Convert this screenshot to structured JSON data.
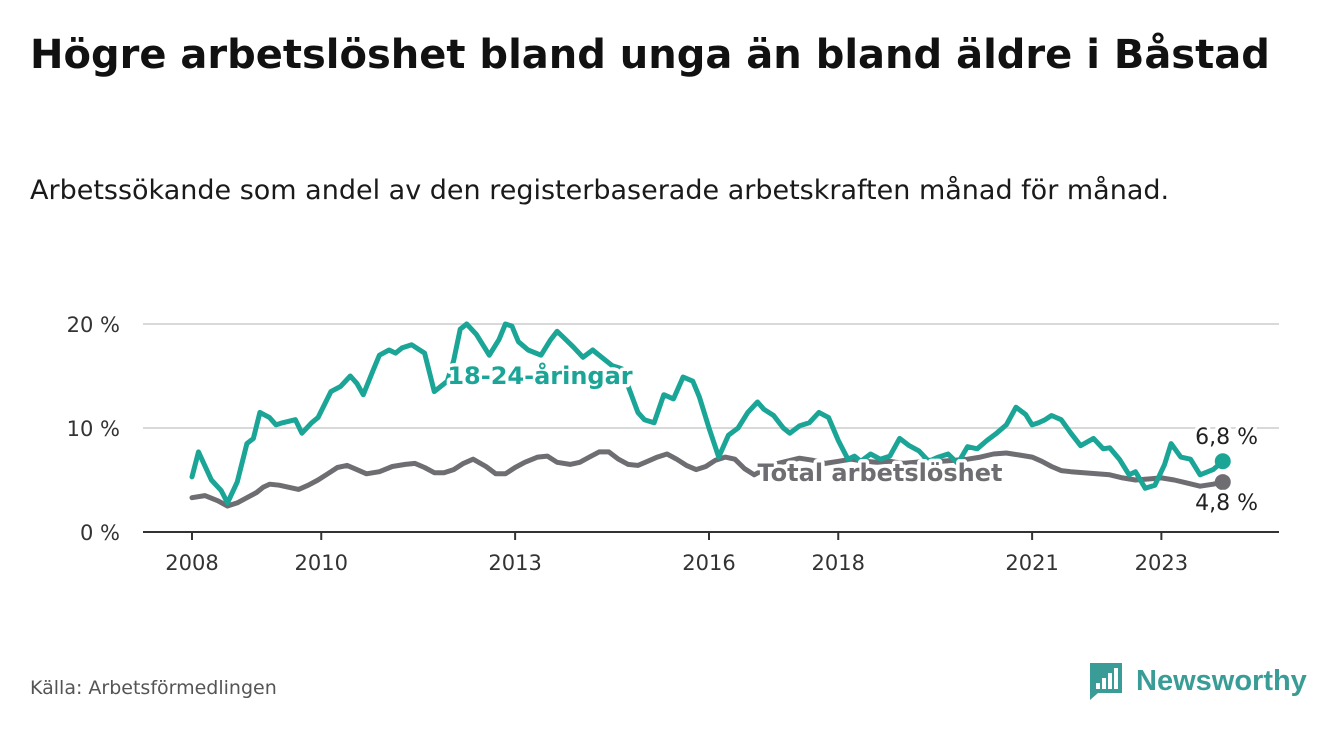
{
  "title": "Högre arbetslöshet bland unga än bland äldre i Båstad",
  "subtitle": "Arbetssökande som andel av den registerbaserade arbetskraften månad för månad.",
  "source": "Källa: Arbetsförmedlingen",
  "brand": "Newsworthy",
  "colors": {
    "youth": "#1aa597",
    "total": "#6e6e72",
    "brand": "#3a9c96",
    "grid": "#d9d9d9",
    "axis": "#333333"
  },
  "chart_data": {
    "type": "line",
    "xlim": [
      2008.0,
      2024.0
    ],
    "ylim": [
      0,
      20
    ],
    "y_ticks": [
      {
        "value": 0,
        "label": "0 %"
      },
      {
        "value": 10,
        "label": "10 %"
      },
      {
        "value": 20,
        "label": "20 %"
      }
    ],
    "x_ticks": [
      {
        "value": 2008,
        "label": "2008"
      },
      {
        "value": 2010,
        "label": "2010"
      },
      {
        "value": 2013,
        "label": "2013"
      },
      {
        "value": 2016,
        "label": "2016"
      },
      {
        "value": 2018,
        "label": "2018"
      },
      {
        "value": 2021,
        "label": "2021"
      },
      {
        "value": 2023,
        "label": "2023"
      }
    ],
    "series": [
      {
        "name": "18-24-åringar",
        "label": "18-24-åringar",
        "end_label": "6,8 %",
        "x": [
          2008.0,
          2008.1,
          2008.3,
          2008.45,
          2008.55,
          2008.7,
          2008.85,
          2008.95,
          2009.05,
          2009.2,
          2009.3,
          2009.4,
          2009.6,
          2009.7,
          2009.85,
          2009.95,
          2010.15,
          2010.3,
          2010.45,
          2010.55,
          2010.65,
          2010.8,
          2010.9,
          2011.05,
          2011.15,
          2011.25,
          2011.4,
          2011.6,
          2011.75,
          2011.95,
          2012.05,
          2012.15,
          2012.25,
          2012.4,
          2012.6,
          2012.75,
          2012.85,
          2012.95,
          2013.05,
          2013.2,
          2013.4,
          2013.55,
          2013.65,
          2013.75,
          2013.9,
          2014.05,
          2014.2,
          2014.3,
          2014.5,
          2014.65,
          2014.75,
          2014.9,
          2015.0,
          2015.15,
          2015.3,
          2015.45,
          2015.6,
          2015.75,
          2015.85,
          2016.0,
          2016.15,
          2016.3,
          2016.45,
          2016.6,
          2016.75,
          2016.85,
          2017.0,
          2017.15,
          2017.25,
          2017.4,
          2017.55,
          2017.7,
          2017.85,
          2018.0,
          2018.15,
          2018.25,
          2018.35,
          2018.5,
          2018.65,
          2018.8,
          2018.95,
          2019.1,
          2019.25,
          2019.4,
          2019.55,
          2019.7,
          2019.85,
          2020.0,
          2020.15,
          2020.3,
          2020.45,
          2020.6,
          2020.75,
          2020.9,
          2021.0,
          2021.1,
          2021.2,
          2021.3,
          2021.45,
          2021.6,
          2021.75,
          2021.95,
          2022.1,
          2022.2,
          2022.35,
          2022.5,
          2022.6,
          2022.75,
          2022.9,
          2023.05,
          2023.15,
          2023.3,
          2023.45,
          2023.6,
          2023.8,
          2023.95
        ],
        "values": [
          5.3,
          7.7,
          5.0,
          4.0,
          2.8,
          4.8,
          8.5,
          9.0,
          11.5,
          11.0,
          10.3,
          10.5,
          10.8,
          9.5,
          10.5,
          11.0,
          13.5,
          14.0,
          15.0,
          14.3,
          13.2,
          15.5,
          17.0,
          17.5,
          17.2,
          17.7,
          18.0,
          17.2,
          13.5,
          14.5,
          16.5,
          19.5,
          20.0,
          19.0,
          17.0,
          18.5,
          20.0,
          19.8,
          18.3,
          17.5,
          17.0,
          18.5,
          19.3,
          18.7,
          17.8,
          16.8,
          17.5,
          17.0,
          16.0,
          15.7,
          14.0,
          11.5,
          10.8,
          10.5,
          13.2,
          12.8,
          14.9,
          14.5,
          13.0,
          10.0,
          7.2,
          9.3,
          10.0,
          11.5,
          12.5,
          11.8,
          11.2,
          10.0,
          9.5,
          10.2,
          10.5,
          11.5,
          11.0,
          8.8,
          7.0,
          7.3,
          6.8,
          7.5,
          7.0,
          7.3,
          9.0,
          8.3,
          7.8,
          6.8,
          7.2,
          7.5,
          6.6,
          8.2,
          8.0,
          8.8,
          9.5,
          10.3,
          12.0,
          11.3,
          10.3,
          10.5,
          10.8,
          11.2,
          10.8,
          9.5,
          8.3,
          9.0,
          8.0,
          8.1,
          7.0,
          5.5,
          5.8,
          4.2,
          4.5,
          6.5,
          8.5,
          7.2,
          7.0,
          5.5,
          6.0,
          6.8
        ]
      },
      {
        "name": "Total arbetslöshet",
        "label": "Total arbetslöshet",
        "end_label": "4,8 %",
        "x": [
          2008.0,
          2008.2,
          2008.4,
          2008.55,
          2008.7,
          2008.85,
          2009.0,
          2009.1,
          2009.2,
          2009.35,
          2009.5,
          2009.65,
          2009.8,
          2009.95,
          2010.1,
          2010.25,
          2010.4,
          2010.55,
          2010.7,
          2010.9,
          2011.1,
          2011.3,
          2011.45,
          2011.6,
          2011.75,
          2011.9,
          2012.05,
          2012.2,
          2012.35,
          2012.55,
          2012.7,
          2012.85,
          2013.0,
          2013.15,
          2013.35,
          2013.5,
          2013.65,
          2013.85,
          2014.0,
          2014.15,
          2014.3,
          2014.45,
          2014.6,
          2014.75,
          2014.9,
          2015.05,
          2015.2,
          2015.35,
          2015.5,
          2015.65,
          2015.8,
          2015.95,
          2016.1,
          2016.25,
          2016.4,
          2016.55,
          2016.7,
          2016.85,
          2017.0,
          2017.2,
          2017.4,
          2017.6,
          2017.8,
          2018.0,
          2018.2,
          2018.4,
          2018.6,
          2018.8,
          2019.0,
          2019.2,
          2019.4,
          2019.6,
          2019.8,
          2020.0,
          2020.2,
          2020.4,
          2020.6,
          2020.8,
          2021.0,
          2021.15,
          2021.3,
          2021.45,
          2021.6,
          2021.8,
          2022.0,
          2022.2,
          2022.4,
          2022.6,
          2022.8,
          2023.0,
          2023.2,
          2023.4,
          2023.6,
          2023.8,
          2023.95
        ],
        "values": [
          3.3,
          3.5,
          3.0,
          2.5,
          2.8,
          3.3,
          3.8,
          4.3,
          4.6,
          4.5,
          4.3,
          4.1,
          4.5,
          5.0,
          5.6,
          6.2,
          6.4,
          6.0,
          5.6,
          5.8,
          6.3,
          6.5,
          6.6,
          6.2,
          5.7,
          5.7,
          6.0,
          6.6,
          7.0,
          6.3,
          5.6,
          5.6,
          6.2,
          6.7,
          7.2,
          7.3,
          6.7,
          6.5,
          6.7,
          7.2,
          7.7,
          7.7,
          7.0,
          6.5,
          6.4,
          6.8,
          7.2,
          7.5,
          7.0,
          6.4,
          6.0,
          6.3,
          6.9,
          7.2,
          7.0,
          6.1,
          5.5,
          6.0,
          6.5,
          6.8,
          7.1,
          6.9,
          6.6,
          6.8,
          7.0,
          6.8,
          6.7,
          6.8,
          6.6,
          6.7,
          6.9,
          6.8,
          6.9,
          7.0,
          7.2,
          7.5,
          7.6,
          7.4,
          7.2,
          6.8,
          6.3,
          5.9,
          5.8,
          5.7,
          5.6,
          5.5,
          5.2,
          5.0,
          5.1,
          5.2,
          5.0,
          4.7,
          4.4,
          4.6,
          4.8
        ]
      }
    ]
  }
}
